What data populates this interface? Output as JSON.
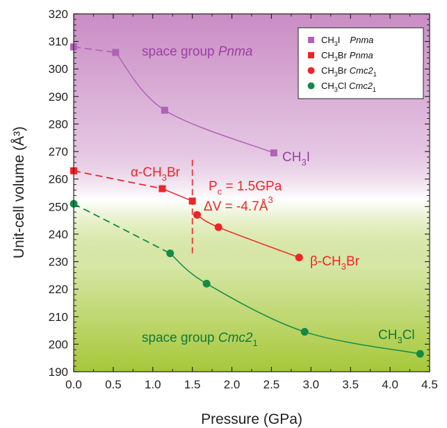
{
  "chart_data": {
    "type": "scatter",
    "xlabel": "Pressure (GPa)",
    "ylabel": "Unit-cell volume (Å³)",
    "xlim": [
      0.0,
      4.5
    ],
    "ylim": [
      190,
      320
    ],
    "x_ticks": [
      "0.0",
      "0.5",
      "1.0",
      "1.5",
      "2.0",
      "2.5",
      "3.0",
      "3.5",
      "4.0",
      "4.5"
    ],
    "y_ticks": [
      "190",
      "200",
      "210",
      "220",
      "230",
      "240",
      "250",
      "260",
      "270",
      "280",
      "290",
      "300",
      "310",
      "320"
    ],
    "background": {
      "top_color": "#c98cc4",
      "middle_color": "#ffffff",
      "bottom_color": "#a6c83a"
    },
    "legend": {
      "position": "top-right",
      "entries": [
        {
          "formula": "CH",
          "sub": "3",
          "tail": "I",
          "phase": "Pnma",
          "marker": "square",
          "color": "#b162b8"
        },
        {
          "formula": "CH",
          "sub": "3",
          "tail": "Br",
          "phase": "Pnma",
          "marker": "square",
          "color": "#ee2427"
        },
        {
          "formula": "CH",
          "sub": "3",
          "tail": "Br",
          "phase": "Cmc2",
          "phase_sub": "1",
          "marker": "circle",
          "color": "#ee2427"
        },
        {
          "formula": "CH",
          "sub": "3",
          "tail": "Cl",
          "phase": "Cmc2",
          "phase_sub": "1",
          "marker": "circle",
          "color": "#138a48"
        }
      ]
    },
    "series": [
      {
        "marker": "square",
        "color": "#b162b8",
        "x": [
          0.0,
          0.53,
          1.15,
          2.53
        ],
        "y": [
          308,
          306,
          285,
          269.5
        ],
        "dashed_segment": [
          0,
          1
        ]
      },
      {
        "marker": "square",
        "color": "#ee2427",
        "x": [
          0.0,
          1.12,
          1.5
        ],
        "y": [
          263,
          256.5,
          252
        ],
        "dashed_segment": [
          0,
          1
        ]
      },
      {
        "marker": "circle",
        "color": "#ee2427",
        "x": [
          1.56,
          1.83,
          2.85
        ],
        "y": [
          247,
          242.5,
          231.5
        ]
      },
      {
        "marker": "circle",
        "color": "#138a48",
        "x": [
          0.0,
          1.22,
          1.68,
          2.92,
          4.38
        ],
        "y": [
          251,
          233,
          222,
          204.5,
          196.5
        ],
        "dashed_segment": [
          0,
          1
        ]
      }
    ],
    "transition": {
      "x": 1.5,
      "y_range": [
        233,
        267
      ],
      "color": "#ee2427"
    },
    "annotations": {
      "pnma_pre": "space group ",
      "pnma_italic": "Pnma",
      "cmc_pre": "space group ",
      "cmc_italic": "Cmc2",
      "cmc_sub": "1",
      "ch3i_main": "CH",
      "ch3i_sub": "3",
      "ch3i_tail": "I",
      "alpha_prefix": "α-CH",
      "alpha_sub": "3",
      "alpha_tail": "Br",
      "beta_prefix": "β-CH",
      "beta_sub": "3",
      "beta_tail": "Br",
      "pc_main": "P",
      "pc_sub": "c",
      "pc_value": " = 1.5GPa",
      "dv_text": "ΔV = -4.7Å",
      "dv_sup": "3",
      "ch3cl_main": "CH",
      "ch3cl_sub": "3",
      "ch3cl_tail": "Cl"
    }
  }
}
